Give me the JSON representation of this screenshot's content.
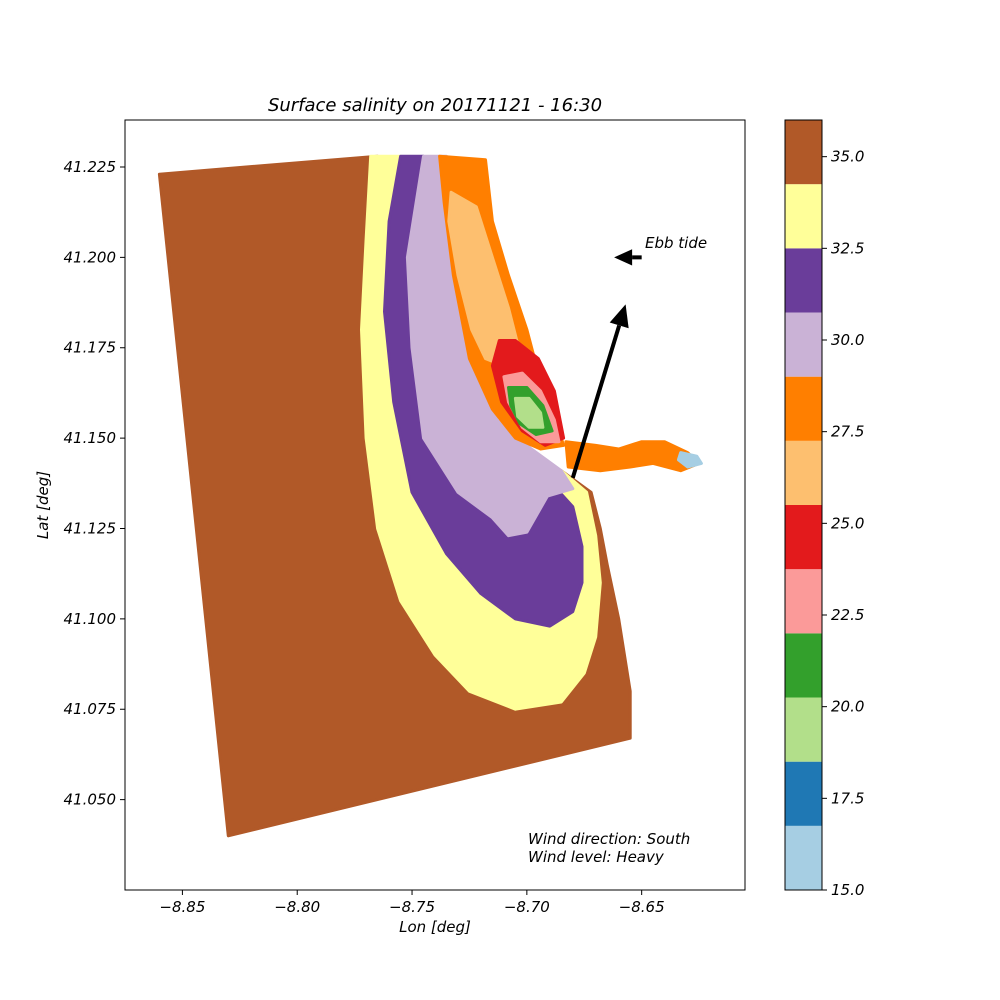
{
  "chart_data": {
    "type": "heatmap",
    "title": "Surface salinity on 20171121 - 16:30",
    "xlabel": "Lon [deg]",
    "ylabel": "Lat [deg]",
    "xlim": [
      -8.875,
      -8.605
    ],
    "ylim": [
      41.025,
      41.238
    ],
    "x_ticks": [
      -8.85,
      -8.8,
      -8.75,
      -8.7,
      -8.65
    ],
    "x_tick_labels": [
      "−8.85",
      "−8.80",
      "−8.75",
      "−8.70",
      "−8.65"
    ],
    "y_ticks": [
      41.05,
      41.075,
      41.1,
      41.125,
      41.15,
      41.175,
      41.2,
      41.225
    ],
    "y_tick_labels": [
      "41.050",
      "41.075",
      "41.100",
      "41.125",
      "41.150",
      "41.175",
      "41.200",
      "41.225"
    ],
    "grid": false,
    "colorbar": {
      "range": [
        15.0,
        36.0
      ],
      "bounds": [
        15.0,
        16.75,
        18.5,
        20.25,
        22.0,
        23.75,
        25.5,
        27.25,
        29.0,
        30.75,
        32.5,
        34.25,
        36.0
      ],
      "colors": [
        "#a6cee3",
        "#1f78b4",
        "#b2df8a",
        "#33a02c",
        "#fb9a99",
        "#e31a1c",
        "#fdbf6f",
        "#ff7f00",
        "#cab2d6",
        "#6a3d9a",
        "#ffff99",
        "#b15928"
      ],
      "ticks": [
        15.0,
        17.5,
        20.0,
        22.5,
        25.0,
        27.5,
        30.0,
        32.5,
        35.0
      ],
      "tick_labels": [
        "15.0",
        "17.5",
        "20.0",
        "22.5",
        "25.0",
        "27.5",
        "30.0",
        "32.5",
        "35.0"
      ]
    },
    "annotations": {
      "tide_label": "Ebb tide",
      "wind_direction": "Wind direction: South",
      "wind_level": "Wind level: Heavy"
    },
    "arrows": {
      "tide": {
        "from": [
          -8.65,
          41.2
        ],
        "to": [
          -8.662,
          41.2
        ]
      },
      "wind": {
        "from": [
          -8.68,
          41.139
        ],
        "to": [
          -8.657,
          41.187
        ]
      }
    },
    "salinity_zones": [
      {
        "salinity": 35.5,
        "polygon": [
          [
            -8.86,
            41.223
          ],
          [
            -8.765,
            41.228
          ],
          [
            -8.748,
            41.2
          ],
          [
            -8.742,
            41.17
          ],
          [
            -8.735,
            41.155
          ],
          [
            -8.715,
            41.145
          ],
          [
            -8.685,
            41.141
          ],
          [
            -8.672,
            41.135
          ],
          [
            -8.668,
            41.125
          ],
          [
            -8.665,
            41.115
          ],
          [
            -8.66,
            41.1
          ],
          [
            -8.655,
            41.08
          ],
          [
            -8.655,
            41.067
          ],
          [
            -8.83,
            41.04
          ]
        ]
      },
      {
        "salinity": 33.5,
        "polygon": [
          [
            -8.768,
            41.228
          ],
          [
            -8.755,
            41.228
          ],
          [
            -8.745,
            41.2
          ],
          [
            -8.739,
            41.17
          ],
          [
            -8.73,
            41.155
          ],
          [
            -8.71,
            41.145
          ],
          [
            -8.685,
            41.141
          ],
          [
            -8.674,
            41.135
          ],
          [
            -8.67,
            41.123
          ],
          [
            -8.668,
            41.11
          ],
          [
            -8.67,
            41.095
          ],
          [
            -8.675,
            41.085
          ],
          [
            -8.685,
            41.077
          ],
          [
            -8.705,
            41.075
          ],
          [
            -8.725,
            41.08
          ],
          [
            -8.74,
            41.09
          ],
          [
            -8.755,
            41.105
          ],
          [
            -8.765,
            41.125
          ],
          [
            -8.77,
            41.15
          ],
          [
            -8.772,
            41.18
          ],
          [
            -8.77,
            41.205
          ]
        ]
      },
      {
        "salinity": 31.5,
        "polygon": [
          [
            -8.755,
            41.228
          ],
          [
            -8.745,
            41.228
          ],
          [
            -8.739,
            41.2
          ],
          [
            -8.733,
            41.17
          ],
          [
            -8.725,
            41.155
          ],
          [
            -8.705,
            41.145
          ],
          [
            -8.69,
            41.138
          ],
          [
            -8.68,
            41.131
          ],
          [
            -8.676,
            41.12
          ],
          [
            -8.676,
            41.11
          ],
          [
            -8.68,
            41.102
          ],
          [
            -8.69,
            41.098
          ],
          [
            -8.705,
            41.1
          ],
          [
            -8.72,
            41.107
          ],
          [
            -8.735,
            41.118
          ],
          [
            -8.75,
            41.135
          ],
          [
            -8.758,
            41.16
          ],
          [
            -8.762,
            41.185
          ],
          [
            -8.76,
            41.21
          ]
        ]
      },
      {
        "salinity": 29.8,
        "polygon": [
          [
            -8.745,
            41.228
          ],
          [
            -8.735,
            41.228
          ],
          [
            -8.729,
            41.2
          ],
          [
            -8.723,
            41.172
          ],
          [
            -8.713,
            41.155
          ],
          [
            -8.698,
            41.147
          ],
          [
            -8.685,
            41.141
          ],
          [
            -8.68,
            41.136
          ],
          [
            -8.691,
            41.134
          ],
          [
            -8.7,
            41.124
          ],
          [
            -8.708,
            41.123
          ],
          [
            -8.715,
            41.128
          ],
          [
            -8.73,
            41.135
          ],
          [
            -8.745,
            41.15
          ],
          [
            -8.75,
            41.175
          ],
          [
            -8.752,
            41.2
          ]
        ]
      },
      {
        "salinity": 28.2,
        "polygon": [
          [
            -8.738,
            41.228
          ],
          [
            -8.718,
            41.227
          ],
          [
            -8.715,
            41.21
          ],
          [
            -8.708,
            41.195
          ],
          [
            -8.7,
            41.18
          ],
          [
            -8.695,
            41.168
          ],
          [
            -8.69,
            41.16
          ],
          [
            -8.684,
            41.148
          ],
          [
            -8.694,
            41.147
          ],
          [
            -8.705,
            41.15
          ],
          [
            -8.715,
            41.158
          ],
          [
            -8.725,
            41.172
          ],
          [
            -8.732,
            41.195
          ],
          [
            -8.736,
            41.215
          ]
        ]
      },
      {
        "salinity": 26.4,
        "polygon": [
          [
            -8.733,
            41.218
          ],
          [
            -8.722,
            41.214
          ],
          [
            -8.715,
            41.2
          ],
          [
            -8.708,
            41.186
          ],
          [
            -8.704,
            41.176
          ],
          [
            -8.71,
            41.17
          ],
          [
            -8.718,
            41.172
          ],
          [
            -8.724,
            41.18
          ],
          [
            -8.73,
            41.195
          ],
          [
            -8.734,
            41.21
          ]
        ]
      },
      {
        "salinity": 24.6,
        "polygon": [
          [
            -8.712,
            41.177
          ],
          [
            -8.705,
            41.177
          ],
          [
            -8.695,
            41.172
          ],
          [
            -8.688,
            41.163
          ],
          [
            -8.684,
            41.15
          ],
          [
            -8.692,
            41.148
          ],
          [
            -8.702,
            41.152
          ],
          [
            -8.711,
            41.16
          ],
          [
            -8.715,
            41.17
          ]
        ]
      },
      {
        "salinity": 22.8,
        "polygon": [
          [
            -8.71,
            41.167
          ],
          [
            -8.702,
            41.168
          ],
          [
            -8.694,
            41.163
          ],
          [
            -8.688,
            41.155
          ],
          [
            -8.686,
            41.149
          ],
          [
            -8.694,
            41.149
          ],
          [
            -8.702,
            41.153
          ],
          [
            -8.708,
            41.16
          ]
        ]
      },
      {
        "salinity": 21.1,
        "polygon": [
          [
            -8.708,
            41.164
          ],
          [
            -8.7,
            41.164
          ],
          [
            -8.693,
            41.159
          ],
          [
            -8.689,
            41.152
          ],
          [
            -8.696,
            41.151
          ],
          [
            -8.703,
            41.154
          ],
          [
            -8.707,
            41.159
          ]
        ]
      },
      {
        "salinity": 19.4,
        "polygon": [
          [
            -8.705,
            41.161
          ],
          [
            -8.699,
            41.161
          ],
          [
            -8.694,
            41.157
          ],
          [
            -8.693,
            41.153
          ],
          [
            -8.699,
            41.153
          ],
          [
            -8.704,
            41.156
          ]
        ]
      },
      {
        "salinity": 27.5,
        "polygon": [
          [
            -8.683,
            41.149
          ],
          [
            -8.67,
            41.148
          ],
          [
            -8.66,
            41.147
          ],
          [
            -8.65,
            41.149
          ],
          [
            -8.64,
            41.149
          ],
          [
            -8.63,
            41.146
          ],
          [
            -8.625,
            41.143
          ],
          [
            -8.633,
            41.141
          ],
          [
            -8.645,
            41.143
          ],
          [
            -8.655,
            41.142
          ],
          [
            -8.668,
            41.141
          ],
          [
            -8.682,
            41.142
          ]
        ]
      },
      {
        "salinity": 16.0,
        "polygon": [
          [
            -8.633,
            41.146
          ],
          [
            -8.626,
            41.145
          ],
          [
            -8.624,
            41.143
          ],
          [
            -8.63,
            41.142
          ],
          [
            -8.634,
            41.144
          ]
        ]
      }
    ]
  }
}
